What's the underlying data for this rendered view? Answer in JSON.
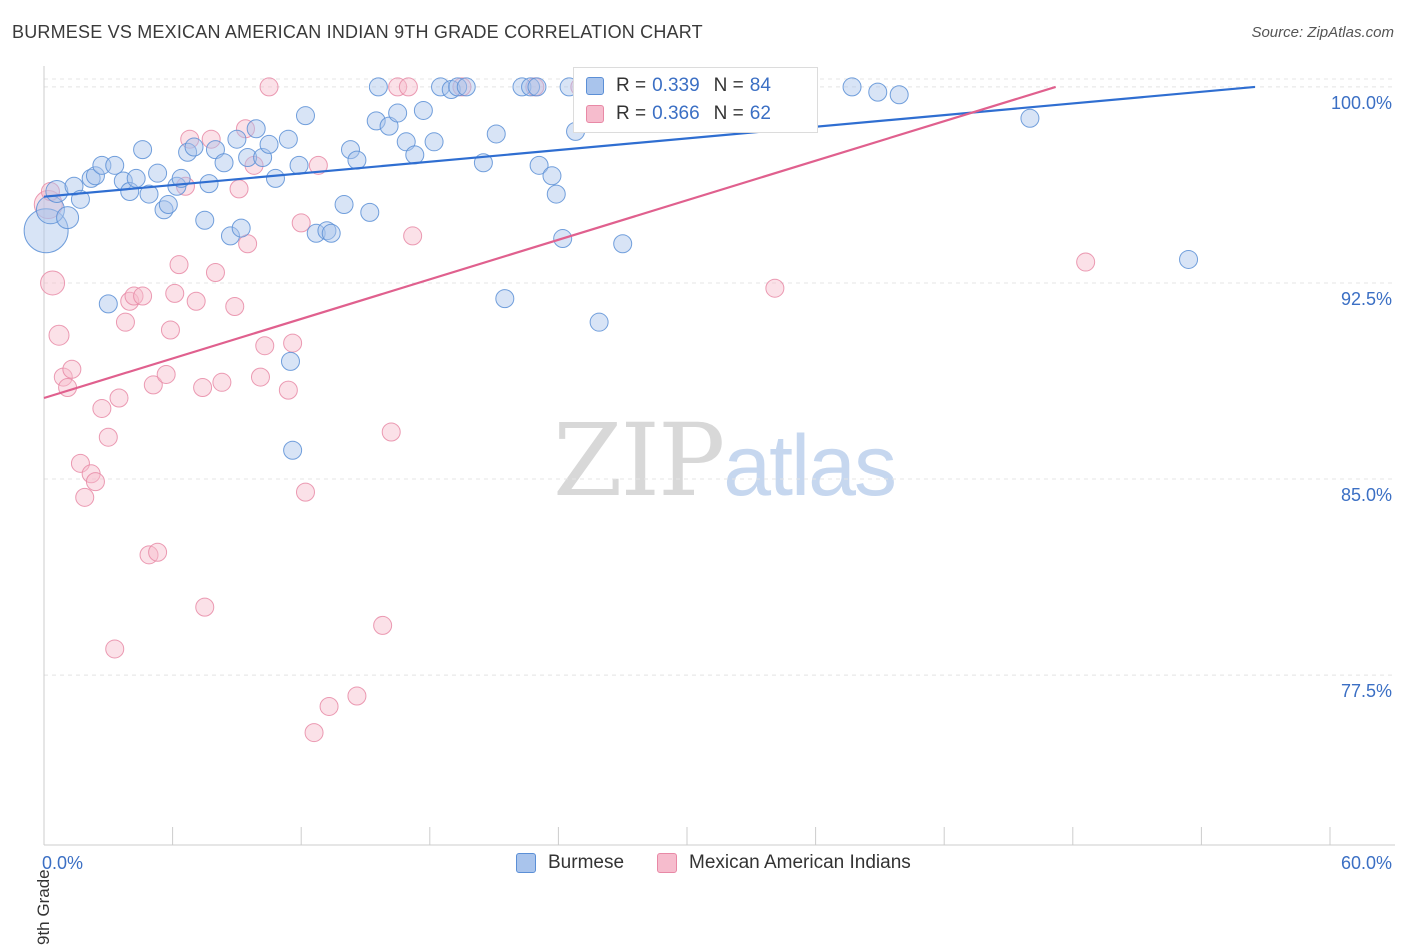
{
  "header": {
    "title": "BURMESE VS MEXICAN AMERICAN INDIAN 9TH GRADE CORRELATION CHART",
    "source": "Source: ZipAtlas.com"
  },
  "watermark": {
    "zip": "ZIP",
    "atlas": "atlas"
  },
  "legend_top": {
    "r_label": "R =",
    "n_label": "N =",
    "rows": [
      {
        "r": "0.339",
        "n": "84"
      },
      {
        "r": "0.366",
        "n": "62"
      }
    ]
  },
  "colors": {
    "blue_fill": "#a9c4ec",
    "blue_stroke": "#5b8fd6",
    "blue_line": "#2f6ed1",
    "pink_fill": "#f6bccd",
    "pink_stroke": "#e889a6",
    "pink_line": "#e0608e",
    "tick_text": "#3b6fc4",
    "grid": "#e4e4e4"
  },
  "chart_data": {
    "type": "scatter",
    "title": "BURMESE VS MEXICAN AMERICAN INDIAN 9TH GRADE CORRELATION CHART",
    "ylabel": "9th Grade",
    "xlabel": "",
    "xlim": [
      0,
      60
    ],
    "ylim": [
      71.0,
      100.8
    ],
    "x_tick_labels": [
      "0.0%",
      "60.0%"
    ],
    "y_ticks": [
      77.5,
      85.0,
      92.5,
      100.0
    ],
    "y_tick_labels": [
      "77.5%",
      "85.0%",
      "92.5%",
      "100.0%"
    ],
    "grid": true,
    "legend_placement": "bottom-center",
    "series": [
      {
        "name": "Burmese",
        "r": 0.339,
        "n": 84,
        "trend": {
          "x": [
            0,
            56.5
          ],
          "y": [
            95.8,
            100.0
          ]
        },
        "points": [
          [
            0.1,
            94.5,
            22
          ],
          [
            0.3,
            95.3,
            14
          ],
          [
            0.6,
            96.0,
            11
          ],
          [
            1.1,
            95.0,
            11
          ],
          [
            1.4,
            96.2,
            9
          ],
          [
            1.7,
            95.7,
            9
          ],
          [
            2.2,
            96.5,
            9
          ],
          [
            2.4,
            96.6,
            9
          ],
          [
            2.7,
            97.0,
            9
          ],
          [
            3.3,
            97.0,
            9
          ],
          [
            3.7,
            96.4,
            9
          ],
          [
            4.0,
            96.0,
            9
          ],
          [
            4.3,
            96.5,
            9
          ],
          [
            4.6,
            97.6,
            9
          ],
          [
            4.9,
            95.9,
            9
          ],
          [
            5.3,
            96.7,
            9
          ],
          [
            5.6,
            95.3,
            9
          ],
          [
            5.8,
            95.5,
            9
          ],
          [
            6.2,
            96.2,
            9
          ],
          [
            6.4,
            96.5,
            9
          ],
          [
            6.7,
            97.5,
            9
          ],
          [
            7.0,
            97.7,
            9
          ],
          [
            7.5,
            94.9,
            9
          ],
          [
            7.7,
            96.3,
            9
          ],
          [
            8.0,
            97.6,
            9
          ],
          [
            8.4,
            97.1,
            9
          ],
          [
            8.7,
            94.3,
            9
          ],
          [
            9.0,
            98.0,
            9
          ],
          [
            9.2,
            94.6,
            9
          ],
          [
            9.5,
            97.3,
            9
          ],
          [
            9.9,
            98.4,
            9
          ],
          [
            10.2,
            97.3,
            9
          ],
          [
            10.5,
            97.8,
            9
          ],
          [
            10.8,
            96.5,
            9
          ],
          [
            11.4,
            98.0,
            9
          ],
          [
            11.9,
            97.0,
            9
          ],
          [
            12.2,
            98.9,
            9
          ],
          [
            12.7,
            94.4,
            9
          ],
          [
            13.2,
            94.5,
            9
          ],
          [
            13.4,
            94.4,
            9
          ],
          [
            14.0,
            95.5,
            9
          ],
          [
            14.3,
            97.6,
            9
          ],
          [
            14.6,
            97.2,
            9
          ],
          [
            15.2,
            95.2,
            9
          ],
          [
            15.5,
            98.7,
            9
          ],
          [
            15.6,
            100.0,
            9
          ],
          [
            16.1,
            98.5,
            9
          ],
          [
            16.5,
            99.0,
            9
          ],
          [
            16.9,
            97.9,
            9
          ],
          [
            17.3,
            97.4,
            9
          ],
          [
            17.7,
            99.1,
            9
          ],
          [
            18.2,
            97.9,
            9
          ],
          [
            18.5,
            100.0,
            9
          ],
          [
            19.0,
            99.9,
            9
          ],
          [
            19.3,
            100.0,
            9
          ],
          [
            19.7,
            100.0,
            9
          ],
          [
            20.5,
            97.1,
            9
          ],
          [
            21.1,
            98.2,
            9
          ],
          [
            21.5,
            91.9,
            9
          ],
          [
            22.3,
            100.0,
            9
          ],
          [
            22.7,
            100.0,
            9
          ],
          [
            23.0,
            100.0,
            9
          ],
          [
            23.1,
            97.0,
            9
          ],
          [
            23.7,
            96.6,
            9
          ],
          [
            23.9,
            95.9,
            9
          ],
          [
            24.2,
            94.2,
            9
          ],
          [
            24.5,
            100.0,
            9
          ],
          [
            24.8,
            98.3,
            9
          ],
          [
            25.4,
            100.0,
            9
          ],
          [
            25.9,
            91.0,
            9
          ],
          [
            26.1,
            100.0,
            9
          ],
          [
            26.6,
            98.8,
            9
          ],
          [
            27.0,
            94.0,
            9
          ],
          [
            27.3,
            100.0,
            9
          ],
          [
            30.0,
            100.0,
            9
          ],
          [
            31.0,
            100.0,
            9
          ],
          [
            31.4,
            99.3,
            9
          ],
          [
            37.7,
            100.0,
            9
          ],
          [
            38.9,
            99.8,
            9
          ],
          [
            39.9,
            99.7,
            9
          ],
          [
            46.0,
            98.8,
            9
          ],
          [
            53.4,
            93.4,
            9
          ],
          [
            11.5,
            89.5,
            9
          ],
          [
            11.6,
            86.1,
            9
          ],
          [
            3.0,
            91.7,
            9
          ]
        ]
      },
      {
        "name": "Mexican American Indians",
        "r": 0.366,
        "n": 62,
        "trend": {
          "x": [
            0,
            47.2
          ],
          "y": [
            88.1,
            100.0
          ]
        },
        "points": [
          [
            0.2,
            95.5,
            14
          ],
          [
            0.3,
            96.0,
            9
          ],
          [
            0.4,
            92.5,
            12
          ],
          [
            0.7,
            90.5,
            10
          ],
          [
            0.9,
            88.9,
            9
          ],
          [
            1.1,
            88.5,
            9
          ],
          [
            1.3,
            89.2,
            9
          ],
          [
            1.7,
            85.6,
            9
          ],
          [
            1.9,
            84.3,
            9
          ],
          [
            2.2,
            85.2,
            9
          ],
          [
            2.4,
            84.9,
            9
          ],
          [
            2.7,
            87.7,
            9
          ],
          [
            3.0,
            86.6,
            9
          ],
          [
            3.3,
            78.5,
            9
          ],
          [
            3.5,
            88.1,
            9
          ],
          [
            3.8,
            91.0,
            9
          ],
          [
            4.0,
            91.8,
            9
          ],
          [
            4.2,
            92.0,
            9
          ],
          [
            4.6,
            92.0,
            9
          ],
          [
            4.9,
            82.1,
            9
          ],
          [
            5.1,
            88.6,
            9
          ],
          [
            5.3,
            82.2,
            9
          ],
          [
            5.7,
            89.0,
            9
          ],
          [
            5.9,
            90.7,
            9
          ],
          [
            6.1,
            92.1,
            9
          ],
          [
            6.3,
            93.2,
            9
          ],
          [
            6.6,
            96.2,
            9
          ],
          [
            6.8,
            98.0,
            9
          ],
          [
            7.1,
            91.8,
            9
          ],
          [
            7.4,
            88.5,
            9
          ],
          [
            7.5,
            80.1,
            9
          ],
          [
            7.8,
            98.0,
            9
          ],
          [
            8.0,
            92.9,
            9
          ],
          [
            8.3,
            88.7,
            9
          ],
          [
            8.9,
            91.6,
            9
          ],
          [
            9.1,
            96.1,
            9
          ],
          [
            9.4,
            98.4,
            9
          ],
          [
            9.5,
            94.0,
            9
          ],
          [
            9.8,
            97.0,
            9
          ],
          [
            10.1,
            88.9,
            9
          ],
          [
            10.3,
            90.1,
            9
          ],
          [
            10.5,
            100.0,
            9
          ],
          [
            11.4,
            88.4,
            9
          ],
          [
            11.6,
            90.2,
            9
          ],
          [
            12.0,
            94.8,
            9
          ],
          [
            12.2,
            84.5,
            9
          ],
          [
            12.6,
            75.3,
            9
          ],
          [
            12.8,
            97.0,
            9
          ],
          [
            13.3,
            76.3,
            9
          ],
          [
            14.6,
            76.7,
            9
          ],
          [
            15.8,
            79.4,
            9
          ],
          [
            16.2,
            86.8,
            9
          ],
          [
            16.5,
            100.0,
            9
          ],
          [
            17.0,
            100.0,
            9
          ],
          [
            17.2,
            94.3,
            9
          ],
          [
            19.5,
            100.0,
            9
          ],
          [
            22.9,
            100.0,
            9
          ],
          [
            25.0,
            100.0,
            9
          ],
          [
            26.0,
            100.0,
            9
          ],
          [
            26.5,
            100.0,
            9
          ],
          [
            34.1,
            92.3,
            9
          ],
          [
            48.6,
            93.3,
            9
          ]
        ]
      }
    ]
  },
  "bottom_legend": {
    "items": [
      "Burmese",
      "Mexican American Indians"
    ]
  }
}
